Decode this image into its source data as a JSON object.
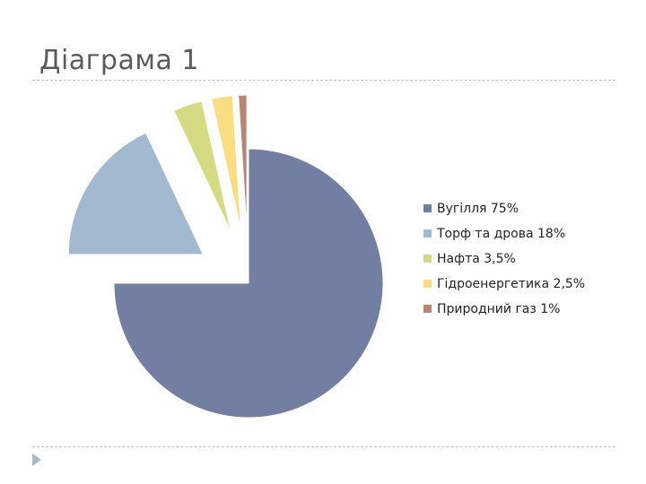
{
  "slide": {
    "title": "Діаграма 1"
  },
  "chart_data": {
    "type": "pie",
    "title": "",
    "categories": [
      "Вугілля 75%",
      "Торф та дрова 18%",
      "Нафта 3,5%",
      "Гідроенергетика 2,5%",
      "Природний газ 1%"
    ],
    "values": [
      75,
      18,
      3.5,
      2.5,
      1
    ],
    "colors": [
      "#727ea2",
      "#a3b9cf",
      "#d5db82",
      "#f8de81",
      "#b9856f"
    ],
    "exploded": [
      false,
      true,
      true,
      true,
      true
    ],
    "legend": "right"
  }
}
